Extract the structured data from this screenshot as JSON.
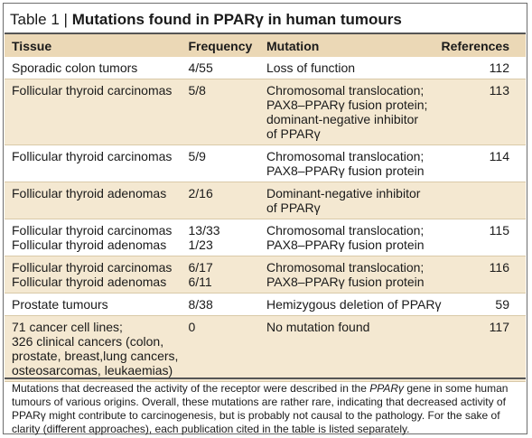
{
  "title": {
    "prefix": "Table 1 | ",
    "text": "Mutations found in PPARγ in human tumours"
  },
  "columns": {
    "tissue": "Tissue",
    "frequency": "Frequency",
    "mutation": "Mutation",
    "references": "References"
  },
  "rows": [
    {
      "tissue": [
        "Sporadic colon tumors"
      ],
      "frequency": [
        "4/55"
      ],
      "mutation": [
        "Loss of function"
      ],
      "references": "112",
      "shaded": false
    },
    {
      "tissue": [
        "Follicular thyroid carcinomas"
      ],
      "frequency": [
        "5/8"
      ],
      "mutation": [
        "Chromosomal translocation;",
        "PAX8–PPARγ fusion protein;",
        "dominant-negative inhibitor",
        "of PPARγ"
      ],
      "references": "113",
      "shaded": true
    },
    {
      "tissue": [
        "Follicular thyroid carcinomas"
      ],
      "frequency": [
        "5/9"
      ],
      "mutation": [
        "Chromosomal translocation;",
        "PAX8–PPARγ fusion protein"
      ],
      "references": "114",
      "shaded": false
    },
    {
      "tissue": [
        "Follicular thyroid adenomas"
      ],
      "frequency": [
        "2/16"
      ],
      "mutation": [
        "Dominant-negative inhibitor",
        "of PPARγ"
      ],
      "references": "",
      "shaded": true
    },
    {
      "tissue": [
        "Follicular thyroid carcinomas",
        "Follicular thyroid adenomas"
      ],
      "frequency": [
        "13/33",
        "1/23"
      ],
      "mutation": [
        "Chromosomal translocation;",
        "PAX8–PPARγ fusion protein"
      ],
      "references": "115",
      "shaded": false
    },
    {
      "tissue": [
        "Follicular thyroid carcinomas",
        "Follicular thyroid adenomas"
      ],
      "frequency": [
        "6/17",
        "6/11"
      ],
      "mutation": [
        "Chromosomal translocation;",
        "PAX8–PPARγ fusion protein"
      ],
      "references": "116",
      "shaded": true
    },
    {
      "tissue": [
        "Prostate tumours"
      ],
      "frequency": [
        "8/38"
      ],
      "mutation": [
        "Hemizygous deletion of PPARγ"
      ],
      "references": "59",
      "shaded": false
    },
    {
      "tissue": [
        "71 cancer cell lines;",
        "326 clinical cancers (colon,",
        "prostate, breast,lung cancers,",
        "osteosarcomas, leukaemias)"
      ],
      "frequency": [
        "0"
      ],
      "mutation": [
        "No mutation found"
      ],
      "references": "117",
      "shaded": true
    }
  ],
  "footnote": {
    "part1": "Mutations that decreased the activity of the receptor were described in the ",
    "gene": "PPARγ",
    "part2": " gene in some human tumours of various origins. Overall, these mutations are rather rare, indicating that decreased activity of PPARγ might contribute to carcinogenesis, but is probably not causal to the pathology. For the sake of clarity (different approaches), each publication cited in the table is listed separately."
  },
  "colors": {
    "header_bg": "#ebd8b6",
    "shaded_row_bg": "#f4e8d1",
    "rule": "#555555"
  }
}
